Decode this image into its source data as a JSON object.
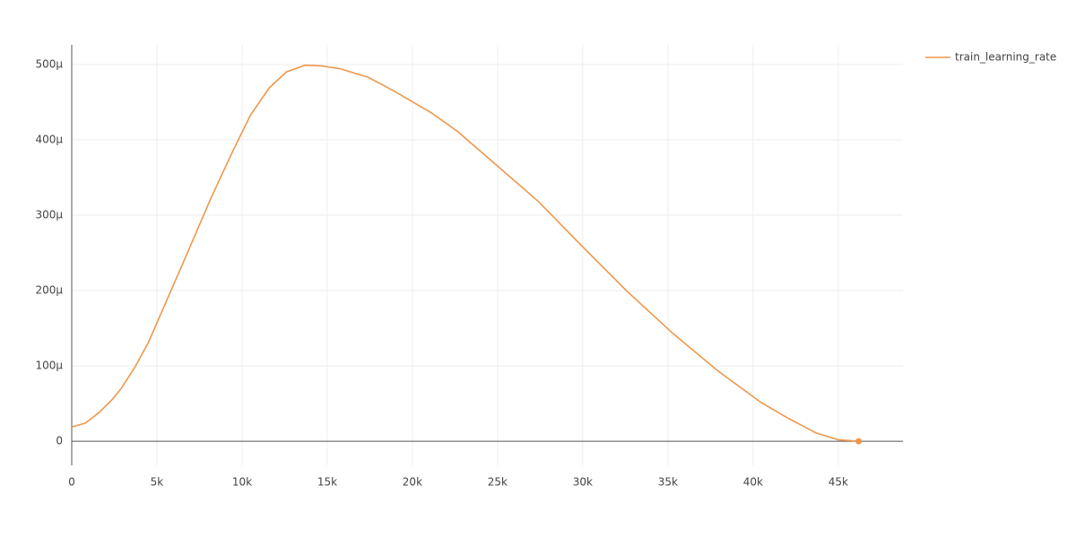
{
  "chart_data": {
    "type": "line",
    "x": [
      0,
      800,
      1600,
      2400,
      2900,
      3700,
      4500,
      5500,
      6600,
      8200,
      9500,
      10500,
      11600,
      12600,
      13700,
      14700,
      15800,
      17400,
      18900,
      21100,
      22600,
      24700,
      27400,
      30000,
      32600,
      35300,
      37900,
      40500,
      42100,
      43700,
      45000,
      46200
    ],
    "series": [
      {
        "name": "train_learning_rate",
        "color": "#f0974b",
        "values": [
          1.9e-05,
          2.4e-05,
          3.8e-05,
          5.6e-05,
          7e-05,
          9.8e-05,
          0.000131,
          0.000183,
          0.00024,
          0.000324,
          0.000387,
          0.000433,
          0.000469,
          0.00049,
          0.000499,
          0.000498,
          0.000494,
          0.000483,
          0.000465,
          0.000436,
          0.000412,
          0.000371,
          0.000318,
          0.000258,
          0.000199,
          0.000143,
          9.4e-05,
          5.1e-05,
          3e-05,
          1.1e-05,
          2e-06,
          0
        ]
      }
    ],
    "xlim": [
      0,
      48800
    ],
    "xticks": [
      0,
      {
        "value": 5000,
        "label": "5k"
      },
      {
        "value": 10000,
        "label": "10k"
      },
      {
        "value": 15000,
        "label": "15k"
      },
      {
        "value": 20000,
        "label": "20k"
      },
      {
        "value": 25000,
        "label": "25k"
      },
      {
        "value": 30000,
        "label": "30k"
      },
      {
        "value": 35000,
        "label": "35k"
      },
      {
        "value": 40000,
        "label": "40k"
      },
      {
        "value": 45000,
        "label": "45k"
      }
    ],
    "ylim": [
      -3.2e-05,
      0.000526
    ],
    "yticks": [
      0,
      {
        "value": 0.0001,
        "label": "100μ"
      },
      {
        "value": 0.0002,
        "label": "200μ"
      },
      {
        "value": 0.0003,
        "label": "300μ"
      },
      {
        "value": 0.0004,
        "label": "400μ"
      },
      {
        "value": 0.0005,
        "label": "500μ"
      }
    ],
    "grid": true,
    "legend": "top-right"
  }
}
